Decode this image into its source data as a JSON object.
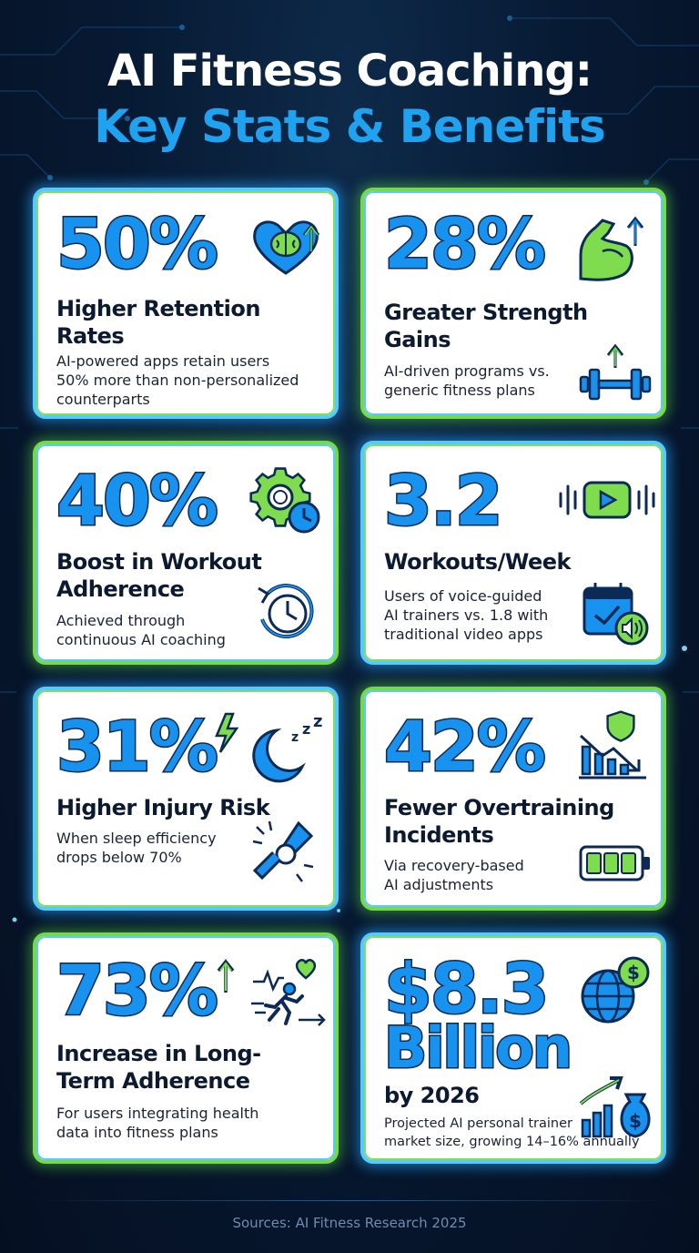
{
  "title": {
    "line1": "AI Fitness Coaching:",
    "line2": "Key Stats & Benefits"
  },
  "cards": [
    {
      "stat": "50%",
      "heading_1": "Higher Retention",
      "heading_2": "Rates",
      "desc_1": "AI-powered apps retain users",
      "desc_2": "50% more than non-personalized",
      "desc_3": "counterparts"
    },
    {
      "stat": "28%",
      "heading_1": "Greater Strength",
      "heading_2": "Gains",
      "desc_1": "AI-driven programs vs.",
      "desc_2": "generic fitness plans"
    },
    {
      "stat": "40%",
      "heading_1": "Boost in Workout",
      "heading_2": "Adherence",
      "desc_1": "Achieved through",
      "desc_2": "continuous AI coaching"
    },
    {
      "stat": "3.2",
      "heading_1": "Workouts/Week",
      "desc_1": "Users of voice-guided",
      "desc_2": "AI trainers vs. 1.8 with",
      "desc_3": "traditional video apps"
    },
    {
      "stat": "31%",
      "heading_1": "Higher Injury Risk",
      "desc_1": "When sleep efficiency",
      "desc_2": "drops below 70%"
    },
    {
      "stat": "42%",
      "heading_1": "Fewer Overtraining",
      "heading_2": "Incidents",
      "desc_1": "Via recovery-based",
      "desc_2": "AI adjustments"
    },
    {
      "stat": "73%",
      "heading_1": "Increase in Long-",
      "heading_2": "Term Adherence",
      "desc_1": "For users integrating health",
      "desc_2": "data into fitness plans"
    },
    {
      "stat": "$8.3",
      "stat_2": "Billion",
      "heading_1": "by 2026",
      "desc_1": "Projected AI personal trainer",
      "desc_2": "market size, growing 14–16% annually"
    }
  ],
  "icons": {
    "c0": "heart-brain-icon",
    "c1a": "flexed-arm-icon",
    "c1b": "dumbbell-icon",
    "c2a": "gear-clock-icon",
    "c2b": "clock-refresh-icon",
    "c3a": "voice-play-icon",
    "c3b": "calendar-speaker-icon",
    "c4a": "moon-sleep-icon",
    "c4b": "injured-joint-icon",
    "c5a": "declining-chart-shield-icon",
    "c5b": "battery-icon",
    "c6a": "running-heartbeat-icon",
    "c7a": "globe-dollar-icon",
    "c7b": "growth-chart-moneybag-icon"
  },
  "colors": {
    "accent_blue": "#1792ee",
    "accent_green": "#76d94a",
    "dark_outline": "#0b2a55",
    "background": "#071a33"
  },
  "footer": {
    "sources": "Sources: AI Fitness Research 2025"
  }
}
